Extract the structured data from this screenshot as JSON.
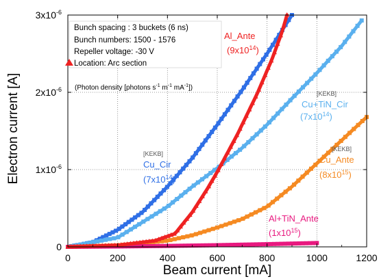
{
  "chart_data": {
    "type": "scatter",
    "xlabel": "Beam current [mA]",
    "ylabel": "Electron current [A]",
    "xlim": [
      0,
      1200
    ],
    "ylim": [
      0,
      3e-06
    ],
    "x_ticks": [
      {
        "value": 0,
        "label": "0"
      },
      {
        "value": 200,
        "label": "200"
      },
      {
        "value": 400,
        "label": "400"
      },
      {
        "value": 600,
        "label": "600"
      },
      {
        "value": 800,
        "label": "800"
      },
      {
        "value": 1000,
        "label": "1000"
      },
      {
        "value": 1200,
        "label": "1200"
      }
    ],
    "y_ticks": [
      {
        "value": 0,
        "base": "0",
        "exp": ""
      },
      {
        "value": 1e-06,
        "base": "1x10",
        "exp": "-6"
      },
      {
        "value": 2e-06,
        "base": "2x10",
        "exp": "-6"
      },
      {
        "value": 3e-06,
        "base": "3x10",
        "exp": "-6"
      }
    ],
    "grid": "dotted",
    "info_box": [
      "Bunch spacing : 3 buckets (6 ns)",
      "Bunch numbers: 1500 - 1576",
      "Repeller voltage: -30 V",
      "Location: Arc section"
    ],
    "photon_note": "(Photon density [photons s",
    "photon_note_parts": {
      "a": "(Photon density [photons s",
      "e1": "-1",
      "b": " m",
      "e2": "-1",
      "c": " mA",
      "e3": "-1",
      "d": "])"
    },
    "series": [
      {
        "label": "Cu_Cir",
        "tag": "[KEKB]",
        "density": "(7x10",
        "density_exp": "14",
        "density_end": ")",
        "color": "#2f6fe6",
        "x": [
          0,
          100,
          200,
          300,
          400,
          500,
          600,
          700,
          800,
          900
        ],
        "y": [
          0,
          6e-08,
          2.2e-07,
          4.5e-07,
          7.8e-07,
          1.15e-06,
          1.58e-06,
          2.03e-06,
          2.5e-06,
          3e-06
        ]
      },
      {
        "label": "Al_Ante",
        "tag": "",
        "density": "(9x10",
        "density_exp": "14",
        "density_end": ")",
        "color": "#ee2222",
        "x": [
          0,
          200,
          350,
          430,
          500,
          560,
          600,
          680,
          760,
          820,
          860,
          880
        ],
        "y": [
          0,
          2e-08,
          8e-08,
          1.7e-07,
          4.5e-07,
          7.5e-07,
          9.7e-07,
          1.45e-06,
          1.98e-06,
          2.43e-06,
          2.78e-06,
          3e-06
        ]
      },
      {
        "label": "Cu+TiN_Cir",
        "tag": "[KEKB]",
        "density": "(7x10",
        "density_exp": "14",
        "density_end": ")",
        "color": "#5ab0ee",
        "x": [
          0,
          200,
          400,
          500,
          600,
          700,
          800,
          900,
          1000,
          1100,
          1180
        ],
        "y": [
          0,
          1.2e-07,
          5.2e-07,
          7.8e-07,
          1.02e-06,
          1.28e-06,
          1.58e-06,
          1.92e-06,
          2.25e-06,
          2.6e-06,
          2.93e-06
        ]
      },
      {
        "label": "Cu_Ante",
        "tag": "[KEKB]",
        "density": "(8x10",
        "density_exp": "15",
        "density_end": ")",
        "color": "#f58a22",
        "x": [
          0,
          200,
          400,
          500,
          600,
          700,
          800,
          900,
          1000,
          1100,
          1200
        ],
        "y": [
          0,
          2e-08,
          8e-08,
          1.5e-07,
          2.5e-07,
          3.6e-07,
          5.2e-07,
          7.8e-07,
          1.08e-06,
          1.38e-06,
          1.68e-06
        ]
      },
      {
        "label": "Al+TiN_Ante",
        "tag": "",
        "density": "(1x10",
        "density_exp": "15",
        "density_end": ")",
        "color": "#e8197f",
        "x": [
          0,
          200,
          400,
          600,
          800,
          1000
        ],
        "y": [
          0,
          5e-09,
          1.2e-08,
          2.2e-08,
          3.5e-08,
          5e-08
        ]
      }
    ]
  }
}
